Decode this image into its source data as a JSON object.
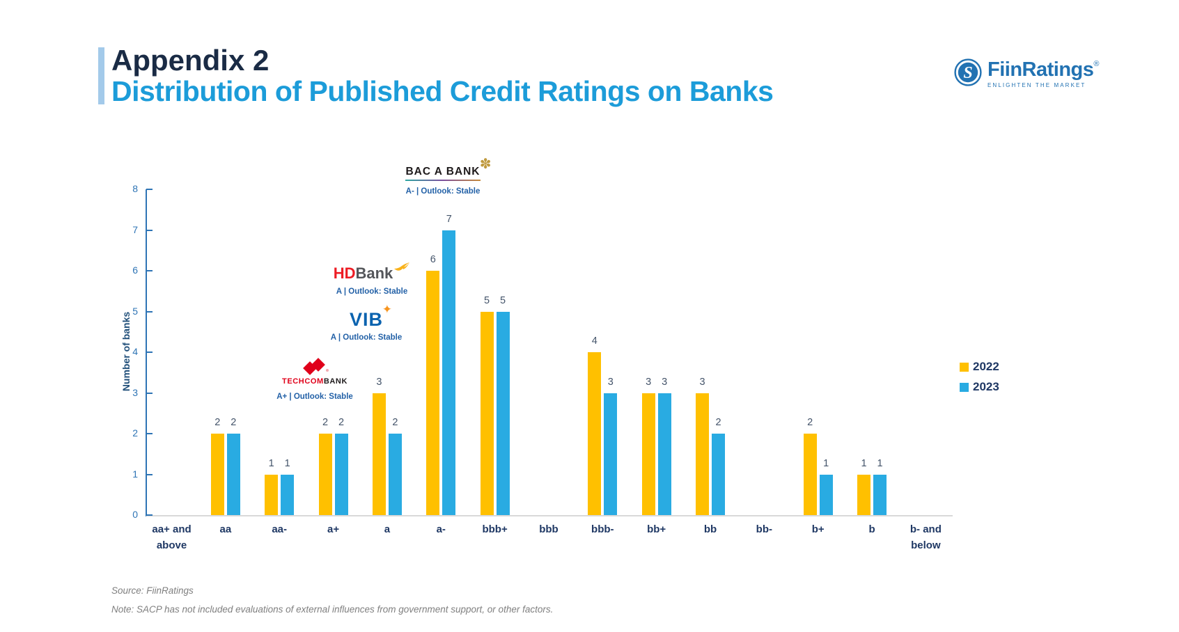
{
  "header": {
    "title": "Appendix 2",
    "subtitle": "Distribution of Published Credit Ratings on Banks"
  },
  "brand": {
    "name": "FiinRatings",
    "registered": "®",
    "tagline": "ENLIGHTEN THE MARKET",
    "color": "#2272B2"
  },
  "chart_data": {
    "type": "bar",
    "title": "Distribution of Published Credit Ratings on Banks",
    "xlabel": "",
    "ylabel": "Number of banks",
    "ylim": [
      0,
      8
    ],
    "yticks": [
      0,
      1,
      2,
      3,
      4,
      5,
      6,
      7,
      8
    ],
    "grid": false,
    "legend_position": "right",
    "categories": [
      "aa+ and above",
      "aa",
      "aa-",
      "a+",
      "a",
      "a-",
      "bbb+",
      "bbb",
      "bbb-",
      "bb+",
      "bb",
      "bb-",
      "b+",
      "b",
      "b- and below"
    ],
    "series": [
      {
        "name": "2022",
        "color": "#FFC000",
        "values": [
          0,
          2,
          1,
          2,
          3,
          6,
          5,
          0,
          4,
          3,
          3,
          0,
          2,
          1,
          0
        ]
      },
      {
        "name": "2023",
        "color": "#29ABE2",
        "values": [
          0,
          2,
          1,
          2,
          2,
          7,
          5,
          0,
          3,
          3,
          2,
          0,
          1,
          1,
          0
        ]
      }
    ]
  },
  "annotations": [
    {
      "bank": "BAC A BANK",
      "logo_text": "BAC A BANK",
      "rating_text": "A- | Outlook: Stable"
    },
    {
      "bank": "HDBank",
      "logo_text_1": "HD",
      "logo_text_2": "Bank",
      "rating_text": "A | Outlook: Stable"
    },
    {
      "bank": "VIB",
      "logo_text": "VIB",
      "rating_text": "A | Outlook: Stable"
    },
    {
      "bank": "TECHCOMBANK",
      "logo_text_1": "TECHCOM",
      "logo_text_2": "BANK",
      "rating_text": "A+ | Outlook: Stable"
    }
  ],
  "footer": {
    "source": "Source: FiinRatings",
    "note": "Note: SACP has not included evaluations of external influences from government support, or other factors."
  }
}
